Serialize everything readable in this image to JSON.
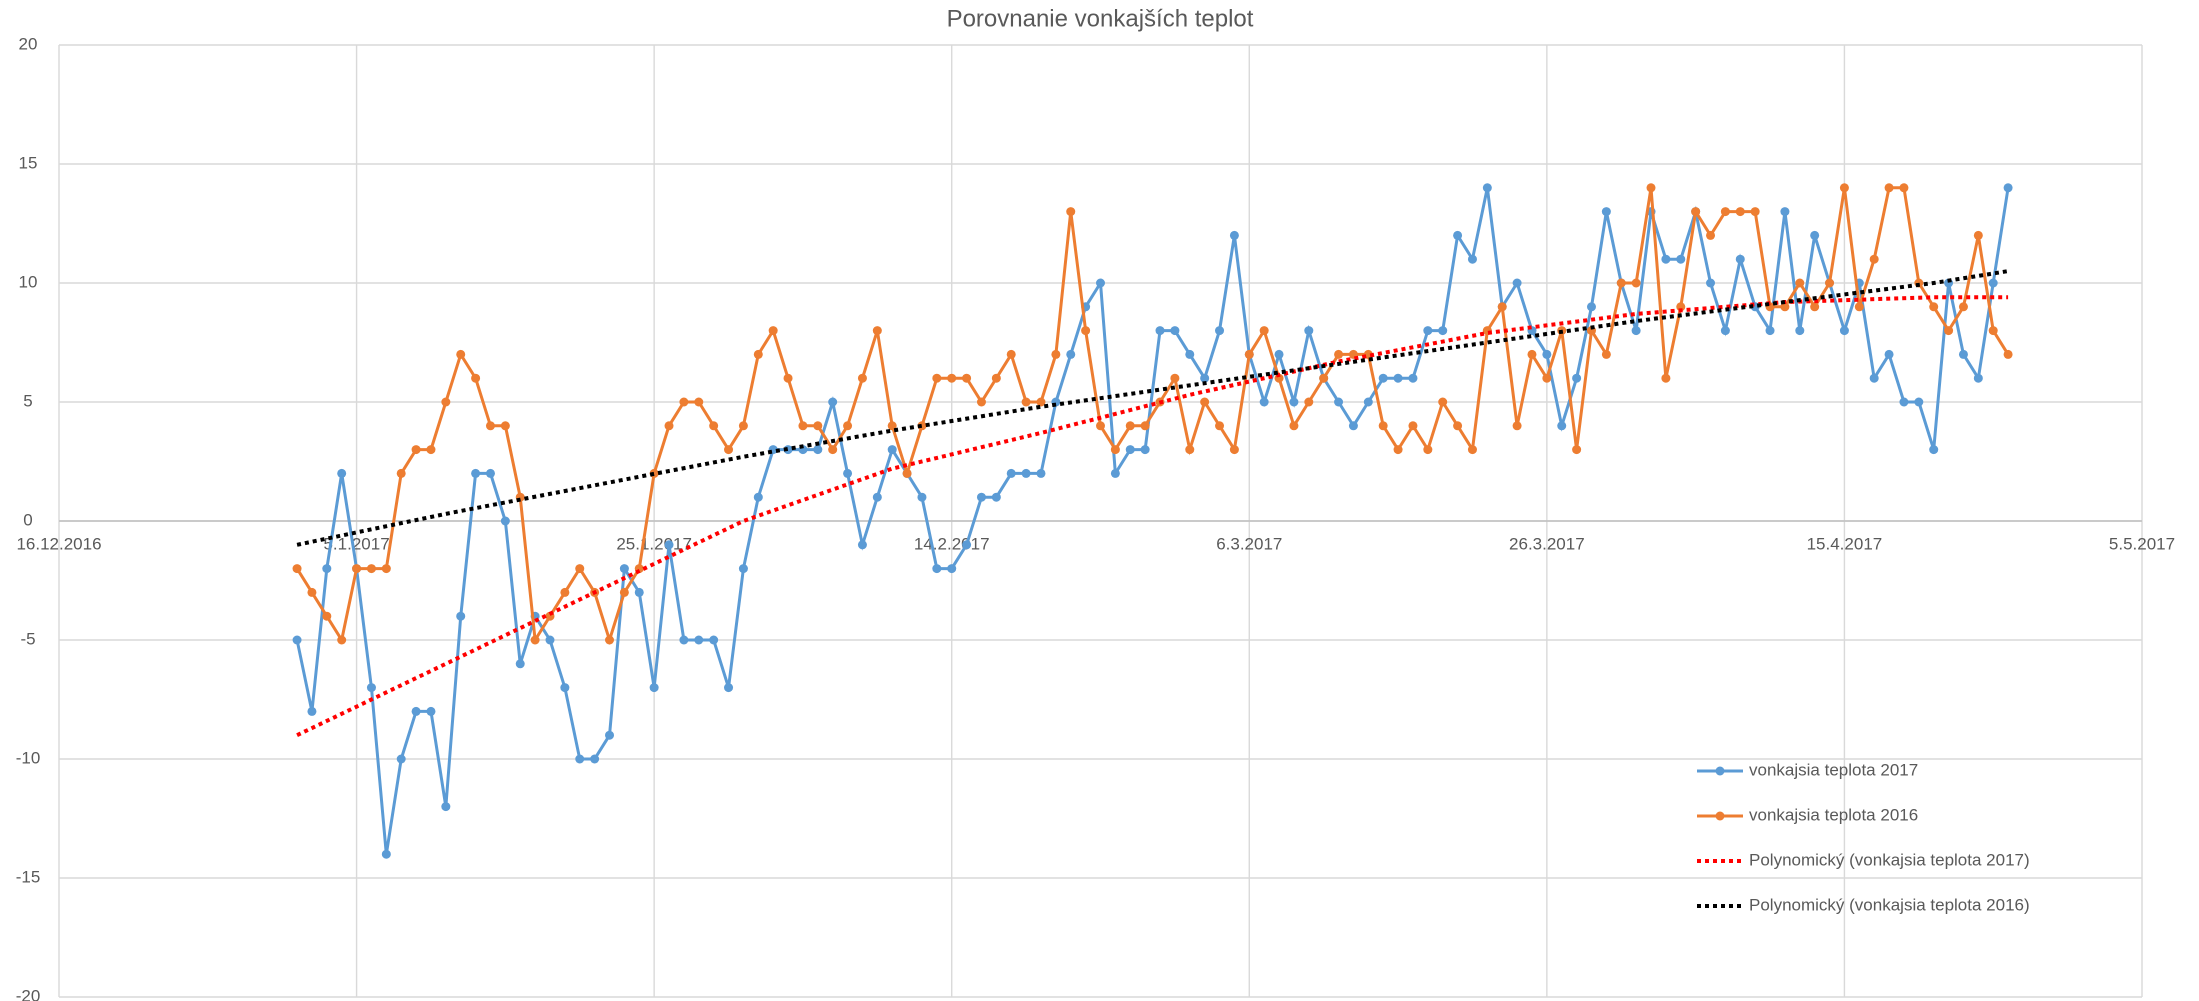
{
  "chart_data": {
    "type": "line",
    "title": "Porovnanie vonkajších teplot",
    "x": [
      "2017-01-01",
      "2017-01-02",
      "2017-01-03",
      "2017-01-04",
      "2017-01-05",
      "2017-01-06",
      "2017-01-07",
      "2017-01-08",
      "2017-01-09",
      "2017-01-10",
      "2017-01-11",
      "2017-01-12",
      "2017-01-13",
      "2017-01-14",
      "2017-01-15",
      "2017-01-16",
      "2017-01-17",
      "2017-01-18",
      "2017-01-19",
      "2017-01-20",
      "2017-01-21",
      "2017-01-22",
      "2017-01-23",
      "2017-01-24",
      "2017-01-25",
      "2017-01-26",
      "2017-01-27",
      "2017-01-28",
      "2017-01-29",
      "2017-01-30",
      "2017-01-31",
      "2017-02-01",
      "2017-02-02",
      "2017-02-03",
      "2017-02-04",
      "2017-02-05",
      "2017-02-06",
      "2017-02-07",
      "2017-02-08",
      "2017-02-09",
      "2017-02-10",
      "2017-02-11",
      "2017-02-12",
      "2017-02-13",
      "2017-02-14",
      "2017-02-15",
      "2017-02-16",
      "2017-02-17",
      "2017-02-18",
      "2017-02-19",
      "2017-02-20",
      "2017-02-21",
      "2017-02-22",
      "2017-02-23",
      "2017-02-24",
      "2017-02-25",
      "2017-02-26",
      "2017-02-27",
      "2017-02-28",
      "2017-03-01",
      "2017-03-02",
      "2017-03-03",
      "2017-03-04",
      "2017-03-05",
      "2017-03-06",
      "2017-03-07",
      "2017-03-08",
      "2017-03-09",
      "2017-03-10",
      "2017-03-11",
      "2017-03-12",
      "2017-03-13",
      "2017-03-14",
      "2017-03-15",
      "2017-03-16",
      "2017-03-17",
      "2017-03-18",
      "2017-03-19",
      "2017-03-20",
      "2017-03-21",
      "2017-03-22",
      "2017-03-23",
      "2017-03-24",
      "2017-03-25",
      "2017-03-26",
      "2017-03-27",
      "2017-03-28",
      "2017-03-29",
      "2017-03-30",
      "2017-03-31",
      "2017-04-01",
      "2017-04-02",
      "2017-04-03",
      "2017-04-04",
      "2017-04-05",
      "2017-04-06",
      "2017-04-07",
      "2017-04-08",
      "2017-04-09",
      "2017-04-10",
      "2017-04-11",
      "2017-04-12",
      "2017-04-13",
      "2017-04-14",
      "2017-04-15",
      "2017-04-16",
      "2017-04-17",
      "2017-04-18",
      "2017-04-19",
      "2017-04-20",
      "2017-04-21",
      "2017-04-22",
      "2017-04-23",
      "2017-04-24",
      "2017-04-25",
      "2017-04-26"
    ],
    "series": [
      {
        "name": "vonkajsia teplota 2017",
        "color": "#5b9bd5",
        "markers": true,
        "values": [
          -5,
          -8,
          -2,
          2,
          -2,
          -7,
          -14,
          -10,
          -8,
          -8,
          -12,
          -4,
          2,
          2,
          0,
          -6,
          -4,
          -5,
          -7,
          -10,
          -10,
          -9,
          -2,
          -3,
          -7,
          -1,
          -5,
          -5,
          -5,
          -7,
          -2,
          1,
          3,
          3,
          3,
          3,
          5,
          2,
          -1,
          1,
          3,
          2,
          1,
          -2,
          -2,
          -1,
          1,
          1,
          2,
          2,
          2,
          5,
          7,
          9,
          10,
          2,
          3,
          3,
          8,
          8,
          7,
          6,
          8,
          12,
          7,
          5,
          7,
          5,
          8,
          6,
          5,
          4,
          5,
          6,
          6,
          6,
          8,
          8,
          12,
          11,
          14,
          9,
          10,
          8,
          7,
          4,
          6,
          9,
          13,
          10,
          8,
          13,
          11,
          11,
          13,
          10,
          8,
          11,
          9,
          8,
          13,
          8,
          12,
          10,
          8,
          10,
          6,
          7,
          5,
          5,
          3,
          10,
          7,
          6,
          10,
          14
        ]
      },
      {
        "name": "vonkajsia teplota 2016",
        "color": "#ed7d31",
        "markers": true,
        "values": [
          -2,
          -3,
          -4,
          -5,
          -2,
          -2,
          -2,
          2,
          3,
          3,
          5,
          7,
          6,
          4,
          4,
          1,
          -5,
          -4,
          -3,
          -2,
          -3,
          -5,
          -3,
          -2,
          2,
          4,
          5,
          5,
          4,
          3,
          4,
          7,
          8,
          6,
          4,
          4,
          3,
          4,
          6,
          8,
          4,
          2,
          4,
          6,
          6,
          6,
          5,
          6,
          7,
          5,
          5,
          7,
          13,
          8,
          4,
          3,
          4,
          4,
          5,
          6,
          3,
          5,
          4,
          3,
          7,
          8,
          6,
          4,
          5,
          6,
          7,
          7,
          7,
          4,
          3,
          4,
          3,
          5,
          4,
          3,
          8,
          9,
          4,
          7,
          6,
          8,
          3,
          8,
          7,
          10,
          10,
          14,
          6,
          9,
          13,
          12,
          13,
          13,
          13,
          9,
          9,
          10,
          9,
          10,
          14,
          9,
          11,
          14,
          14,
          10,
          9,
          8,
          9,
          12,
          8,
          7
        ]
      },
      {
        "name": "Polynomický (vonkajsia teplota 2017)",
        "color": "#ff0000",
        "line_style": "dotted",
        "x": [
          "2017-01-01",
          "2017-01-11",
          "2017-01-21",
          "2017-01-31",
          "2017-02-10",
          "2017-02-20",
          "2017-03-02",
          "2017-03-12",
          "2017-03-22",
          "2017-04-01",
          "2017-04-11",
          "2017-04-21",
          "2017-04-26"
        ],
        "values": [
          -9,
          -6,
          -3,
          0,
          2.2,
          3.7,
          5.3,
          6.7,
          7.9,
          8.7,
          9.2,
          9.4,
          9.4
        ]
      },
      {
        "name": "Polynomický (vonkajsia teplota 2016)",
        "color": "#000000",
        "line_style": "dotted",
        "x": [
          "2017-01-01",
          "2017-01-11",
          "2017-01-21",
          "2017-01-31",
          "2017-02-10",
          "2017-02-20",
          "2017-03-02",
          "2017-03-12",
          "2017-03-22",
          "2017-04-01",
          "2017-04-11",
          "2017-04-21",
          "2017-04-26"
        ],
        "values": [
          -1,
          0.3,
          1.5,
          2.7,
          3.8,
          4.8,
          5.7,
          6.6,
          7.5,
          8.4,
          9.2,
          10,
          10.5
        ]
      }
    ],
    "xlim": [
      "2016-12-16",
      "2017-05-05"
    ],
    "xticks": [
      {
        "value": "2016-12-16",
        "label": "16.12.2016"
      },
      {
        "value": "2017-01-05",
        "label": "5.1.2017"
      },
      {
        "value": "2017-01-25",
        "label": "25.1.2017"
      },
      {
        "value": "2017-02-14",
        "label": "14.2.2017"
      },
      {
        "value": "2017-03-06",
        "label": "6.3.2017"
      },
      {
        "value": "2017-03-26",
        "label": "26.3.2017"
      },
      {
        "value": "2017-04-15",
        "label": "15.4.2017"
      },
      {
        "value": "2017-05-05",
        "label": "5.5.2017"
      }
    ],
    "ylim": [
      -20,
      20
    ],
    "yticks": [
      -20,
      -15,
      -10,
      -5,
      0,
      5,
      10,
      15,
      20
    ],
    "grid": true,
    "legend": "lower right"
  }
}
